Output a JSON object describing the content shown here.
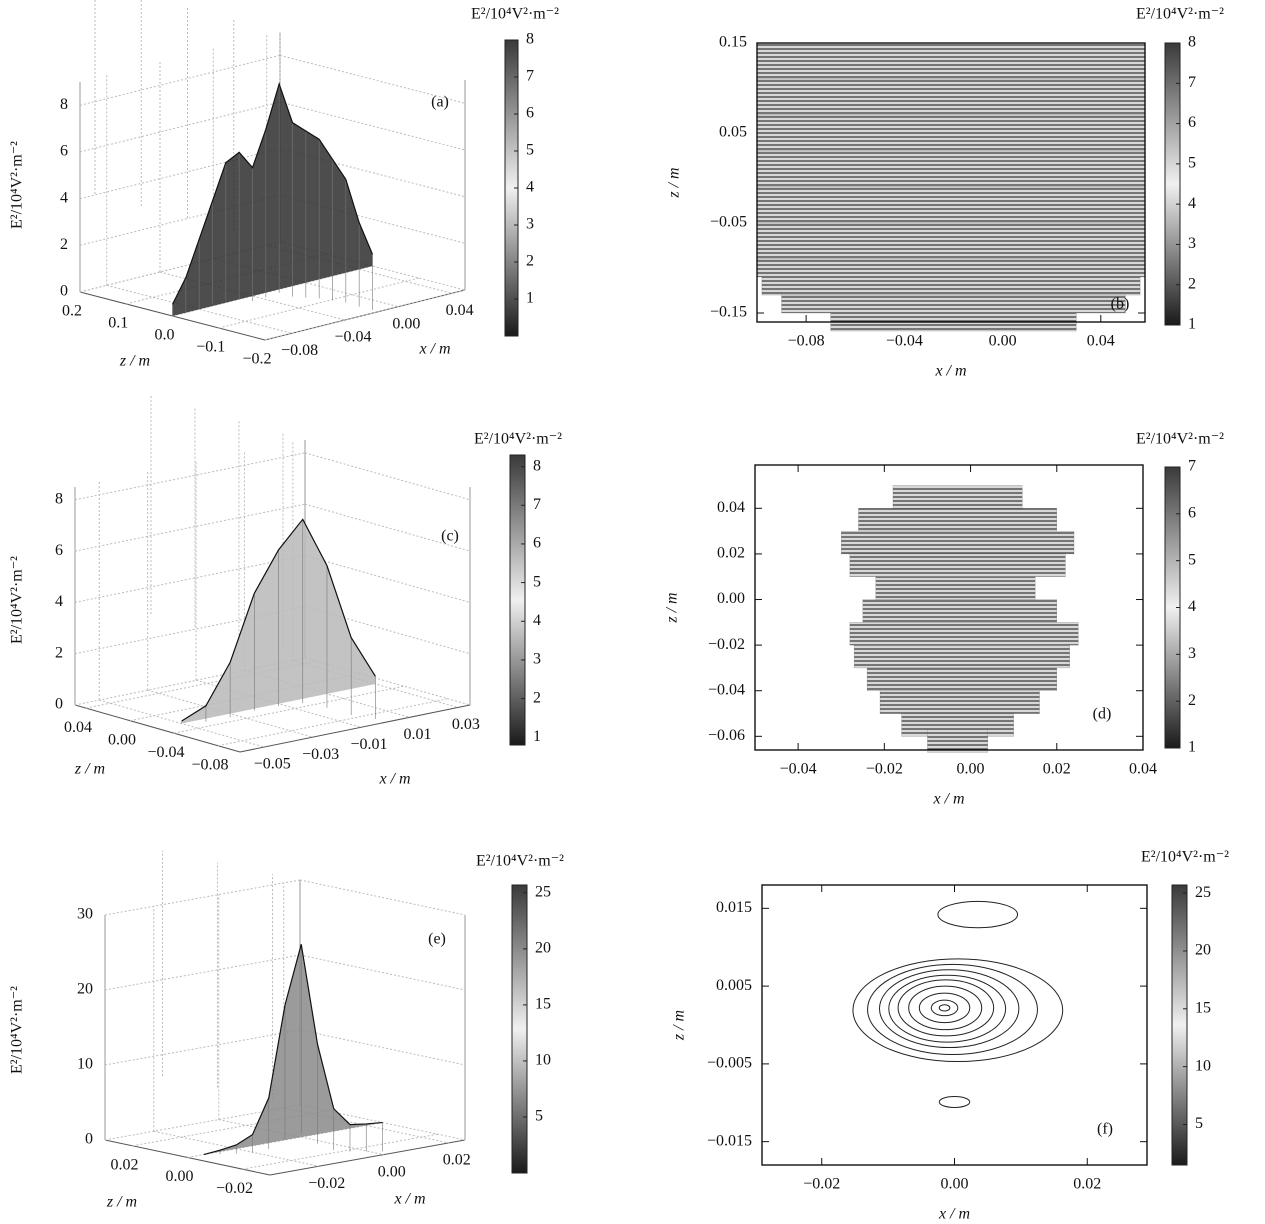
{
  "chart_data": [
    {
      "type": "surface3d",
      "label": "(a)",
      "ylabel": "E²/10⁴V²·m⁻²",
      "xlabel": "x / m",
      "zlabel": "z / m",
      "colorbar_label": "E²/10⁴V²·m⁻²",
      "color": "#2e2e2e",
      "ylim": [
        0,
        9
      ],
      "yticks": [
        0,
        2,
        4,
        6,
        8
      ],
      "xlim": [
        -0.1,
        0.05
      ],
      "xticks": [
        {
          "value": -0.08,
          "label": "−0.08"
        },
        {
          "value": -0.04,
          "label": "−0.04"
        },
        {
          "value": 0,
          "label": "0.00"
        },
        0.04
      ],
      "zlim": [
        0.2,
        -0.2
      ],
      "zticks": [
        0.2,
        0.1,
        {
          "value": 0,
          "label": "0.0"
        },
        {
          "value": -0.1,
          "label": "−0.1"
        },
        {
          "value": -0.2,
          "label": "−0.2"
        }
      ],
      "clim": [
        0,
        8
      ],
      "cticks": [
        1,
        2,
        3,
        4,
        5,
        6,
        7,
        8
      ],
      "x": [
        -0.1,
        -0.09,
        -0.08,
        -0.07,
        -0.06,
        -0.05,
        -0.04,
        -0.03,
        -0.02,
        -0.01,
        0,
        0.01,
        0.02,
        0.03,
        0.04,
        0.05
      ],
      "values": [
        0.5,
        1.5,
        3,
        4.5,
        6,
        6.3,
        5.5,
        7,
        8.8,
        7,
        6.5,
        6,
        5,
        4,
        2,
        0.5
      ]
    },
    {
      "type": "contour",
      "label": "(b)",
      "xlabel": "x / m",
      "ylabel": "z / m",
      "colorbar_label": "E²/10⁴V²·m⁻²",
      "color": "#333333",
      "xlim": [
        -0.1,
        0.058
      ],
      "xticks": [
        {
          "value": -0.08,
          "label": "−0.08"
        },
        {
          "value": -0.04,
          "label": "−0.04"
        },
        {
          "value": 0,
          "label": "0.00"
        },
        0.04
      ],
      "ylim": [
        -0.16,
        0.15
      ],
      "yticks": [
        0.15,
        0.05,
        {
          "value": -0.05,
          "label": "−0.05"
        },
        {
          "value": -0.15,
          "label": "−0.15"
        }
      ],
      "clim": [
        1,
        8
      ],
      "cticks": [
        1,
        2,
        3,
        4,
        5,
        6,
        7,
        8
      ],
      "z": [
        0.14,
        0.12,
        0.1,
        0.08,
        0.06,
        0.04,
        0.02,
        0,
        -0.02,
        -0.04,
        -0.06,
        -0.08,
        -0.1,
        -0.12,
        -0.14,
        -0.16
      ],
      "x_left": [
        -0.1,
        -0.1,
        -0.1,
        -0.1,
        -0.1,
        -0.1,
        -0.1,
        -0.1,
        -0.1,
        -0.1,
        -0.1,
        -0.1,
        -0.1,
        -0.098,
        -0.09,
        -0.07
      ],
      "x_right": [
        0.058,
        0.058,
        0.058,
        0.058,
        0.058,
        0.058,
        0.058,
        0.058,
        0.058,
        0.058,
        0.058,
        0.058,
        0.058,
        0.056,
        0.05,
        0.03
      ]
    },
    {
      "type": "surface3d",
      "label": "(c)",
      "ylabel": "E²/10⁴V²·m⁻²",
      "xlabel": "x / m",
      "zlabel": "z / m",
      "colorbar_label": "E²/10⁴V²·m⁻²",
      "color": "#b8b8b8",
      "ylim": [
        0,
        8.5
      ],
      "yticks": [
        0,
        2,
        4,
        6,
        8
      ],
      "xlim": [
        -0.06,
        0.035
      ],
      "xticks": [
        {
          "value": -0.05,
          "label": "−0.05"
        },
        {
          "value": -0.03,
          "label": "−0.03"
        },
        {
          "value": -0.01,
          "label": "−0.01"
        },
        0.01,
        0.03
      ],
      "zlim": [
        0.05,
        -0.1
      ],
      "zticks": [
        0.04,
        {
          "value": 0,
          "label": "0.00"
        },
        {
          "value": -0.04,
          "label": "−0.04"
        },
        {
          "value": -0.08,
          "label": "−0.08"
        }
      ],
      "clim": [
        0.8,
        8.3
      ],
      "cticks": [
        1,
        2,
        3,
        4,
        5,
        6,
        7,
        8
      ],
      "x": [
        -0.05,
        -0.04,
        -0.03,
        -0.02,
        -0.01,
        0,
        0.01,
        0.02,
        0.03
      ],
      "values": [
        0.1,
        0.5,
        2,
        4.5,
        6,
        7,
        5,
        2,
        0.3
      ]
    },
    {
      "type": "contour",
      "label": "(d)",
      "xlabel": "x / m",
      "ylabel": "z / m",
      "colorbar_label": "E²/10⁴V²·m⁻²",
      "color": "#555555",
      "xlim": [
        -0.05,
        0.04
      ],
      "xticks": [
        {
          "value": -0.04,
          "label": "−0.04"
        },
        {
          "value": -0.02,
          "label": "−0.02"
        },
        {
          "value": 0,
          "label": "0.00"
        },
        0.02,
        0.04
      ],
      "ylim": [
        -0.066,
        0.059
      ],
      "yticks": [
        0.04,
        0.02,
        {
          "value": 0,
          "label": "0.00"
        },
        {
          "value": -0.02,
          "label": "−0.02"
        },
        {
          "value": -0.04,
          "label": "−0.04"
        },
        {
          "value": -0.06,
          "label": "−0.06"
        }
      ],
      "clim": [
        1,
        7
      ],
      "cticks": [
        1,
        2,
        3,
        4,
        5,
        6,
        7
      ],
      "z": [
        0.045,
        0.035,
        0.025,
        0.015,
        0.005,
        -0.005,
        -0.015,
        -0.025,
        -0.035,
        -0.045,
        -0.055,
        -0.062
      ],
      "x_left": [
        -0.018,
        -0.026,
        -0.03,
        -0.028,
        -0.022,
        -0.025,
        -0.028,
        -0.027,
        -0.024,
        -0.021,
        -0.016,
        -0.01
      ],
      "x_right": [
        0.012,
        0.02,
        0.024,
        0.022,
        0.015,
        0.02,
        0.025,
        0.023,
        0.02,
        0.016,
        0.01,
        0.004
      ]
    },
    {
      "type": "surface3d",
      "label": "(e)",
      "ylabel": "E²/10⁴V²·m⁻²",
      "xlabel": "x / m",
      "zlabel": "z / m",
      "colorbar_label": "E²/10⁴V²·m⁻²",
      "color": "#8a8a8a",
      "ylim": [
        0,
        30
      ],
      "yticks": [
        0,
        10,
        20,
        30
      ],
      "xlim": [
        -0.035,
        0.025
      ],
      "xticks": [
        {
          "value": -0.02,
          "label": "−0.02"
        },
        {
          "value": 0,
          "label": "0.00"
        },
        0.02
      ],
      "zlim": [
        0.03,
        -0.03
      ],
      "zticks": [
        0.02,
        {
          "value": 0,
          "label": "0.00"
        },
        {
          "value": -0.02,
          "label": "−0.02"
        }
      ],
      "clim": [
        0,
        25.7
      ],
      "cticks": [
        5,
        10,
        15,
        20,
        25
      ],
      "x": [
        -0.03,
        -0.025,
        -0.02,
        -0.015,
        -0.01,
        -0.005,
        0,
        0.005,
        0.01,
        0.015,
        0.02,
        0.025
      ],
      "values": [
        0,
        0.2,
        0.5,
        1.5,
        6,
        18,
        25.7,
        12,
        3,
        0.5,
        0.2,
        0
      ]
    },
    {
      "type": "ellipses",
      "label": "(f)",
      "xlabel": "x / m",
      "ylabel": "z / m",
      "colorbar_label": "E²/10⁴V²·m⁻²",
      "color": "#222222",
      "xlim": [
        -0.029,
        0.029
      ],
      "xticks": [
        {
          "value": -0.02,
          "label": "−0.02"
        },
        {
          "value": 0,
          "label": "0.00"
        },
        0.02
      ],
      "ylim": [
        -0.018,
        0.018
      ],
      "yticks": [
        0.015,
        0.005,
        {
          "value": -0.005,
          "label": "−0.005"
        },
        {
          "value": -0.015,
          "label": "−0.015"
        }
      ],
      "clim": [
        1.5,
        25.7
      ],
      "cticks": [
        5,
        10,
        15,
        20,
        25
      ],
      "x": [
        0.0035,
        0,
        0.0005,
        -0.0003,
        -0.0008,
        -0.0011,
        -0.0013,
        -0.0014,
        -0.0015,
        -0.0015,
        -0.0015
      ],
      "z": [
        0.0142,
        -0.0099,
        0.0019,
        0.002,
        0.0021,
        0.0021,
        0.0022,
        0.0022,
        0.0022,
        0.0022,
        0.0022
      ],
      "rx": [
        0.006,
        0.0023,
        0.0158,
        0.0128,
        0.0105,
        0.0088,
        0.0072,
        0.0055,
        0.0038,
        0.002,
        0.0008
      ],
      "rz": [
        0.0017,
        0.0007,
        0.0066,
        0.0058,
        0.005,
        0.0043,
        0.0036,
        0.0028,
        0.0019,
        0.001,
        0.0004
      ]
    }
  ]
}
